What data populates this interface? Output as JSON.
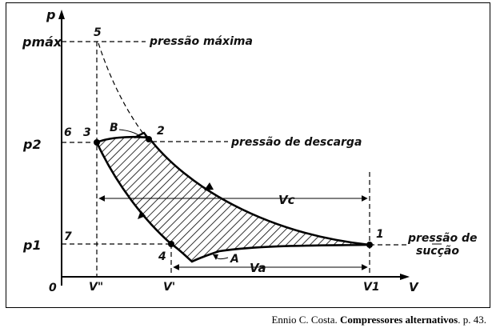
{
  "axes": {
    "p": "p",
    "V": "V",
    "origin": "0",
    "p_max": "pmáx",
    "p2": "p2",
    "p1": "p1",
    "V_double_prime": "V\"",
    "V_prime": "V'",
    "V1": "V1"
  },
  "points": {
    "p1": "1",
    "p2": "2",
    "p3": "3",
    "p4": "4",
    "p5": "5",
    "p6": "6",
    "p7": "7",
    "A": "A",
    "B": "B"
  },
  "annotations": {
    "pressao_maxima": "pressão máxima",
    "pressao_descarga": "pressão de descarga",
    "pressao_succao_line1": "pressão de",
    "pressao_succao_line2": "sucção",
    "Vc": "Vc",
    "Va": "Va"
  },
  "caption": {
    "author": "Ennio C. Costa.",
    "title": "Compressores alternativos",
    "page": ". p. 43."
  }
}
